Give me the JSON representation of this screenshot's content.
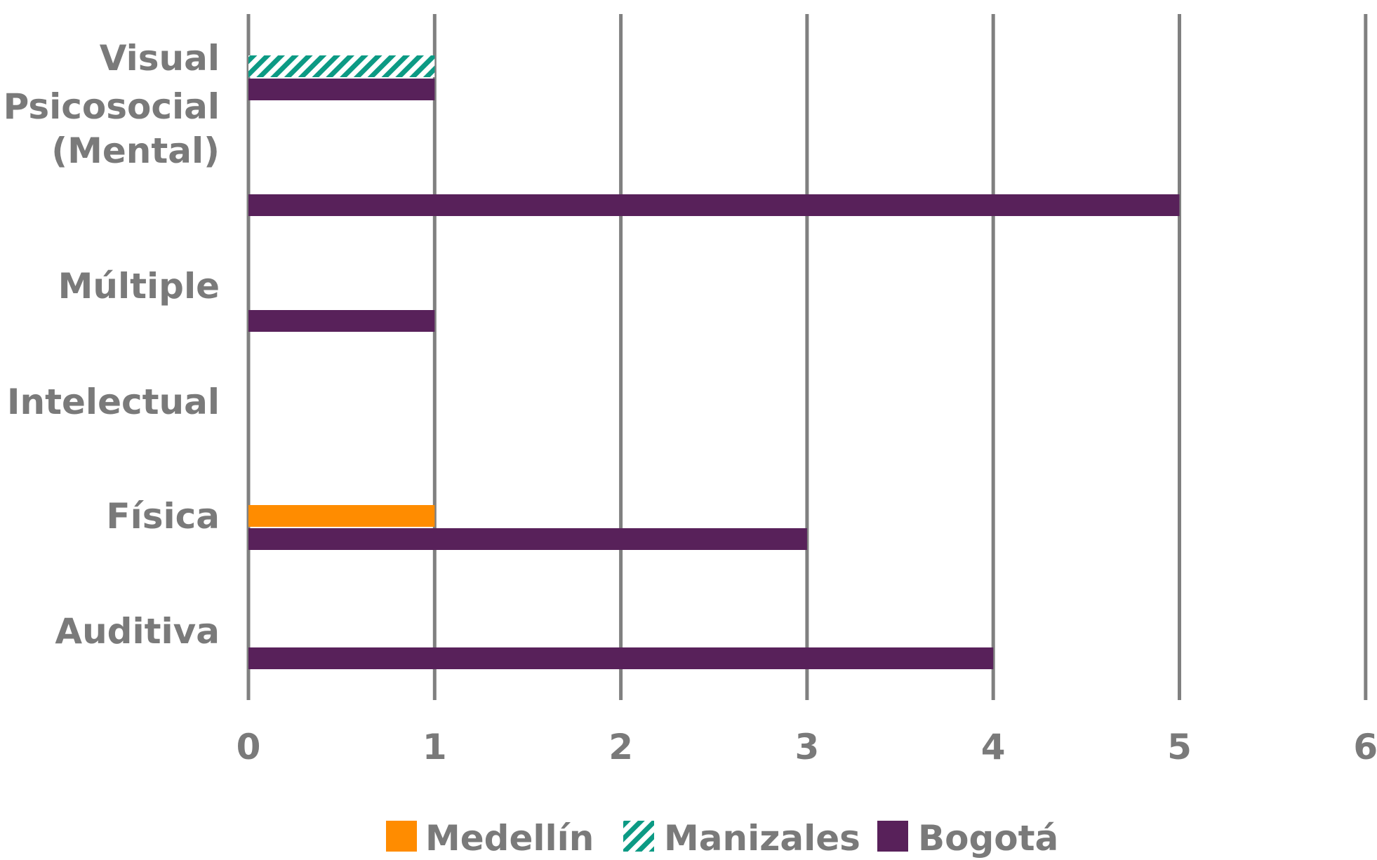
{
  "chart_data": {
    "type": "bar",
    "orientation": "horizontal",
    "categories": [
      "Visual",
      "Psicosocial (Mental)",
      "Múltiple",
      "Intelectual",
      "Física",
      "Auditiva"
    ],
    "category_lines": [
      [
        "Visual"
      ],
      [
        "Psicosocial",
        "(Mental)"
      ],
      [
        "Múltiple"
      ],
      [
        "Intelectual"
      ],
      [
        "Física"
      ],
      [
        "Auditiva"
      ]
    ],
    "series": [
      {
        "name": "Medellín",
        "color": "#ff8c00",
        "pattern": "solid",
        "values": [
          0,
          0,
          0,
          0,
          1,
          0
        ]
      },
      {
        "name": "Manizales",
        "color": "#0c9a84",
        "pattern": "hatch",
        "values": [
          1,
          0,
          0,
          0,
          0,
          0
        ]
      },
      {
        "name": "Bogotá",
        "color": "#58215a",
        "pattern": "solid",
        "values": [
          1,
          5,
          1,
          0,
          3,
          4
        ]
      }
    ],
    "xlim": [
      0,
      6
    ],
    "xticks": [
      "0",
      "1",
      "2",
      "3",
      "4",
      "5",
      "6"
    ],
    "grid": "vertical",
    "legend_position": "bottom-center",
    "title": "",
    "xlabel": "",
    "ylabel": ""
  }
}
